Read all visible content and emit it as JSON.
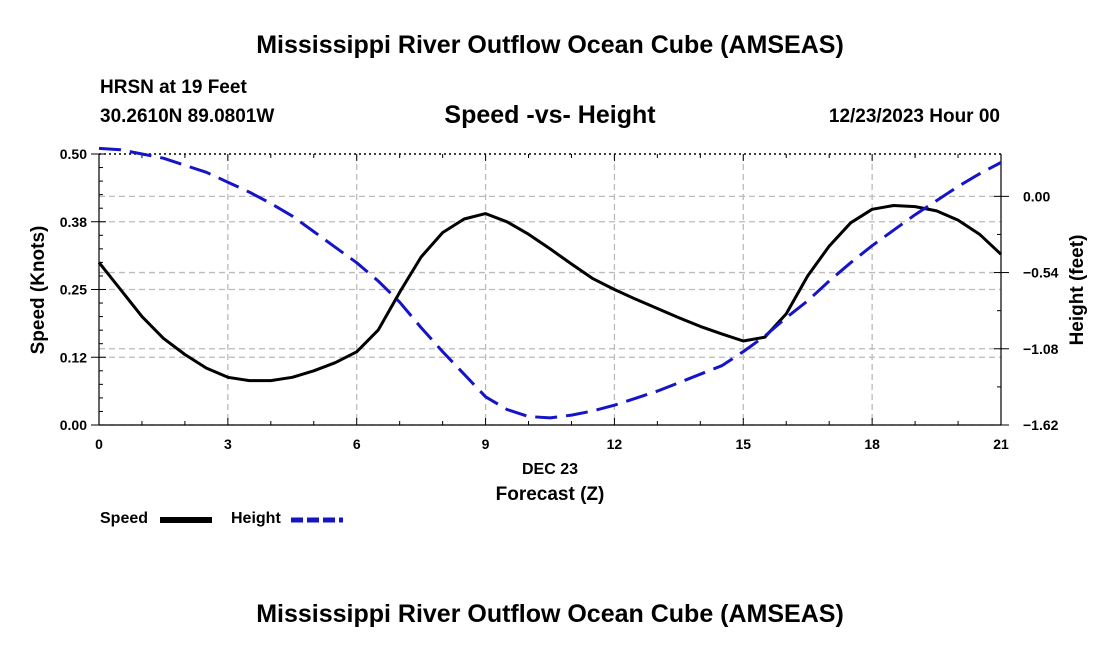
{
  "header": {
    "title": "Mississippi River Outflow Ocean Cube (AMSEAS)",
    "station": "HRSN at 19 Feet",
    "coords": "30.2610N  89.0801W",
    "subtitle": "Speed -vs- Height",
    "run_time": "12/23/2023 Hour 00"
  },
  "footer": {
    "title": "Mississippi River Outflow Ocean Cube (AMSEAS)"
  },
  "legend": {
    "speed_label": "Speed",
    "height_label": "Height"
  },
  "colors": {
    "speed": "#000000",
    "height": "#1515c8",
    "grid": "#bbbbbb"
  },
  "chart_data": {
    "type": "line",
    "title": "Speed -vs- Height",
    "xlabel": "Forecast (Z)",
    "xlabel_date": "DEC 23",
    "ylabel_left": "Speed (Knots)",
    "ylabel_right": "Height (feet)",
    "xlim": [
      0,
      21
    ],
    "ylim_left": [
      0,
      0.5
    ],
    "ylim_right": [
      -1.62,
      0.3
    ],
    "x_ticks": [
      0,
      3,
      6,
      9,
      12,
      15,
      18,
      21
    ],
    "x_tick_labels": [
      "0",
      "3",
      "6",
      "9",
      "12",
      "15",
      "18",
      "21"
    ],
    "y_left_ticks": [
      0,
      0.125,
      0.25,
      0.375,
      0.5
    ],
    "y_left_tick_labels": [
      "0.00",
      "0.12",
      "0.25",
      "0.38",
      "0.50"
    ],
    "y_right_ticks": [
      0,
      -0.54,
      -1.08,
      -1.62
    ],
    "y_right_tick_labels": [
      "0.00",
      "-0.54",
      "-1.08",
      "-1.62"
    ],
    "series": [
      {
        "name": "Speed",
        "axis": "left",
        "x": [
          0,
          0.5,
          1,
          1.5,
          2,
          2.5,
          3,
          3.5,
          4,
          4.5,
          5,
          5.5,
          6,
          6.5,
          7,
          7.5,
          8,
          8.5,
          9,
          9.5,
          10,
          10.5,
          11,
          11.5,
          12,
          12.5,
          13,
          13.5,
          14,
          14.5,
          15,
          15.5,
          16,
          16.5,
          17,
          17.5,
          18,
          18.5,
          19,
          19.5,
          20,
          20.5,
          21
        ],
        "values": [
          0.3,
          0.25,
          0.2,
          0.16,
          0.13,
          0.105,
          0.088,
          0.082,
          0.082,
          0.088,
          0.1,
          0.115,
          0.135,
          0.175,
          0.245,
          0.31,
          0.355,
          0.38,
          0.39,
          0.375,
          0.352,
          0.325,
          0.297,
          0.27,
          0.25,
          0.232,
          0.215,
          0.198,
          0.182,
          0.168,
          0.155,
          0.162,
          0.205,
          0.275,
          0.33,
          0.373,
          0.398,
          0.405,
          0.403,
          0.395,
          0.378,
          0.352,
          0.315
        ]
      },
      {
        "name": "Height",
        "axis": "right",
        "x": [
          0,
          0.5,
          1,
          1.5,
          2,
          2.5,
          3,
          3.5,
          4,
          4.5,
          5,
          5.5,
          6,
          6.5,
          7,
          7.5,
          8,
          8.5,
          9,
          9.5,
          10,
          10.5,
          11,
          11.5,
          12,
          12.5,
          13,
          13.5,
          14,
          14.5,
          15,
          15.5,
          16,
          16.5,
          17,
          17.5,
          18,
          18.5,
          19,
          19.5,
          20,
          20.5,
          21
        ],
        "values": [
          0.34,
          0.33,
          0.3,
          0.27,
          0.22,
          0.17,
          0.1,
          0.03,
          -0.05,
          -0.14,
          -0.25,
          -0.36,
          -0.47,
          -0.6,
          -0.75,
          -0.93,
          -1.1,
          -1.26,
          -1.42,
          -1.51,
          -1.56,
          -1.57,
          -1.55,
          -1.52,
          -1.48,
          -1.43,
          -1.38,
          -1.32,
          -1.26,
          -1.2,
          -1.1,
          -0.99,
          -0.86,
          -0.74,
          -0.6,
          -0.47,
          -0.35,
          -0.24,
          -0.13,
          -0.03,
          0.07,
          0.16,
          0.24
        ]
      }
    ]
  }
}
